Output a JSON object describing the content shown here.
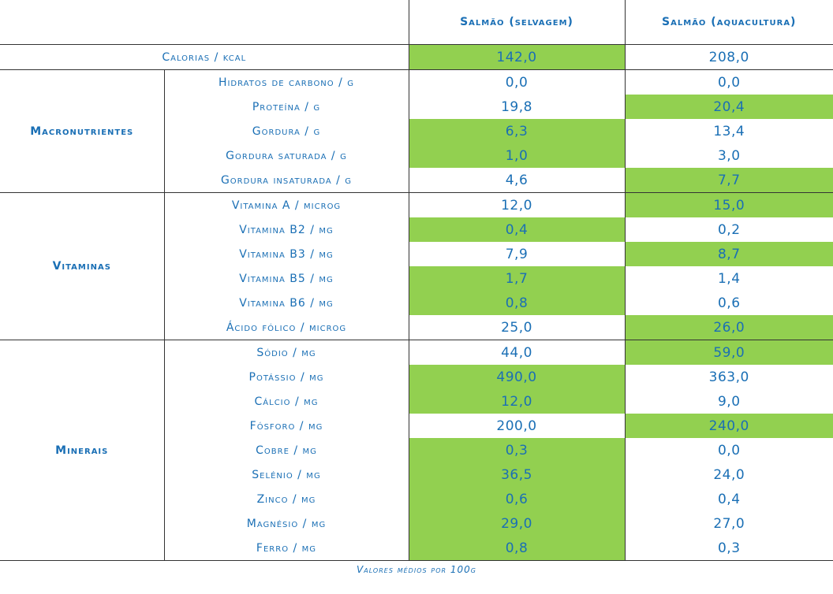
{
  "header": {
    "col_wild": "Salmão (selvagem)",
    "col_farm": "Salmão (aquacultura)"
  },
  "calories": {
    "label": "Calorias / kcal",
    "wild": "142,0",
    "farm": "208,0",
    "highlight": "wild"
  },
  "groups": [
    {
      "name": "Macronutrientes",
      "rows": [
        {
          "label": "Hidratos de carbono / g",
          "wild": "0,0",
          "farm": "0,0",
          "highlight": "none"
        },
        {
          "label": "Proteína / g",
          "wild": "19,8",
          "farm": "20,4",
          "highlight": "farm"
        },
        {
          "label": "Gordura / g",
          "wild": "6,3",
          "farm": "13,4",
          "highlight": "wild"
        },
        {
          "label": "Gordura saturada / g",
          "wild": "1,0",
          "farm": "3,0",
          "highlight": "wild"
        },
        {
          "label": "Gordura insaturada / g",
          "wild": "4,6",
          "farm": "7,7",
          "highlight": "farm"
        }
      ]
    },
    {
      "name": "Vitaminas",
      "rows": [
        {
          "label": "Vitamina A / microg",
          "wild": "12,0",
          "farm": "15,0",
          "highlight": "farm"
        },
        {
          "label": "Vitamina B2 / mg",
          "wild": "0,4",
          "farm": "0,2",
          "highlight": "wild"
        },
        {
          "label": "Vitamina B3 / mg",
          "wild": "7,9",
          "farm": "8,7",
          "highlight": "farm"
        },
        {
          "label": "Vitamina B5 / mg",
          "wild": "1,7",
          "farm": "1,4",
          "highlight": "wild"
        },
        {
          "label": "Vitamina B6 / mg",
          "wild": "0,8",
          "farm": "0,6",
          "highlight": "wild"
        },
        {
          "label": "Ácido fólico / microg",
          "wild": "25,0",
          "farm": "26,0",
          "highlight": "farm"
        }
      ]
    },
    {
      "name": "Minerais",
      "rows": [
        {
          "label": "Sódio / mg",
          "wild": "44,0",
          "farm": "59,0",
          "highlight": "farm"
        },
        {
          "label": "Potássio / mg",
          "wild": "490,0",
          "farm": "363,0",
          "highlight": "wild"
        },
        {
          "label": "Cálcio / mg",
          "wild": "12,0",
          "farm": "9,0",
          "highlight": "wild"
        },
        {
          "label": "Fósforo / mg",
          "wild": "200,0",
          "farm": "240,0",
          "highlight": "farm"
        },
        {
          "label": "Cobre / mg",
          "wild": "0,3",
          "farm": "0,0",
          "highlight": "wild"
        },
        {
          "label": "Selénio / mg",
          "wild": "36,5",
          "farm": "24,0",
          "highlight": "wild"
        },
        {
          "label": "Zinco / mg",
          "wild": "0,6",
          "farm": "0,4",
          "highlight": "wild"
        },
        {
          "label": "Magnésio / mg",
          "wild": "29,0",
          "farm": "27,0",
          "highlight": "wild"
        },
        {
          "label": "Ferro / mg",
          "wild": "0,8",
          "farm": "0,3",
          "highlight": "wild"
        }
      ]
    }
  ],
  "footer": "Valores médios por 100g",
  "colors": {
    "text": "#1a6fb5",
    "highlight": "#92d050",
    "border": "#333333"
  }
}
